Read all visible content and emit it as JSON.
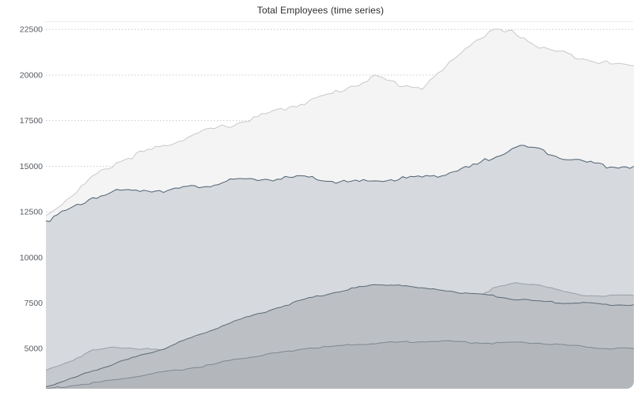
{
  "chart_data": {
    "type": "area",
    "title": "Total Employees (time series)",
    "xlabel": "",
    "ylabel": "",
    "ylim": [
      2800,
      22900
    ],
    "yticks": [
      5000,
      7500,
      10000,
      12500,
      15000,
      17500,
      20000,
      22500
    ],
    "grid": "horizontal dotted",
    "legend": "none",
    "x": [
      0,
      4,
      8,
      12,
      16,
      20,
      24,
      28,
      32,
      36,
      40,
      44,
      48,
      52,
      56,
      60,
      64,
      68,
      72,
      76,
      80,
      84,
      88,
      92,
      96,
      100
    ],
    "series": [
      {
        "color": "#c9c9cc",
        "fill": "#f4f4f5",
        "values": [
          12300,
          13300,
          14400,
          15200,
          15700,
          16100,
          16600,
          17000,
          17300,
          17700,
          18100,
          18500,
          18900,
          19400,
          19900,
          19500,
          19300,
          20400,
          21700,
          22400,
          22300,
          21500,
          21200,
          20900,
          20600,
          20500
        ]
      },
      {
        "color": "#4f6272",
        "fill": "#d6d9dd",
        "values": [
          12000,
          12600,
          13300,
          13600,
          13700,
          13700,
          13800,
          14000,
          14200,
          14300,
          14300,
          14400,
          14200,
          14100,
          14200,
          14300,
          14400,
          14600,
          14900,
          15500,
          16100,
          15900,
          15500,
          15200,
          15000,
          15000
        ]
      },
      {
        "color": "#9aa0a7",
        "fill": "#c5c9ce",
        "values": [
          3800,
          4300,
          4900,
          5100,
          5000,
          4900,
          4800,
          4900,
          5200,
          5500,
          5800,
          6200,
          6700,
          7100,
          7400,
          7200,
          6900,
          7000,
          7600,
          8300,
          8600,
          8500,
          8100,
          7900,
          7900,
          7900
        ]
      },
      {
        "color": "#5d6a76",
        "fill": "#bcc0c5",
        "values": [
          2900,
          3300,
          3800,
          4200,
          4600,
          5000,
          5500,
          6000,
          6500,
          6900,
          7300,
          7700,
          8000,
          8300,
          8500,
          8500,
          8300,
          8200,
          8000,
          7900,
          7700,
          7600,
          7500,
          7500,
          7400,
          7400
        ]
      },
      {
        "color": "#7e8790",
        "fill": "#b3b7bc",
        "values": [
          2800,
          2950,
          3100,
          3300,
          3500,
          3700,
          3900,
          4100,
          4400,
          4600,
          4800,
          5000,
          5100,
          5200,
          5300,
          5350,
          5400,
          5400,
          5350,
          5300,
          5350,
          5300,
          5200,
          5100,
          5000,
          5000
        ]
      }
    ]
  }
}
